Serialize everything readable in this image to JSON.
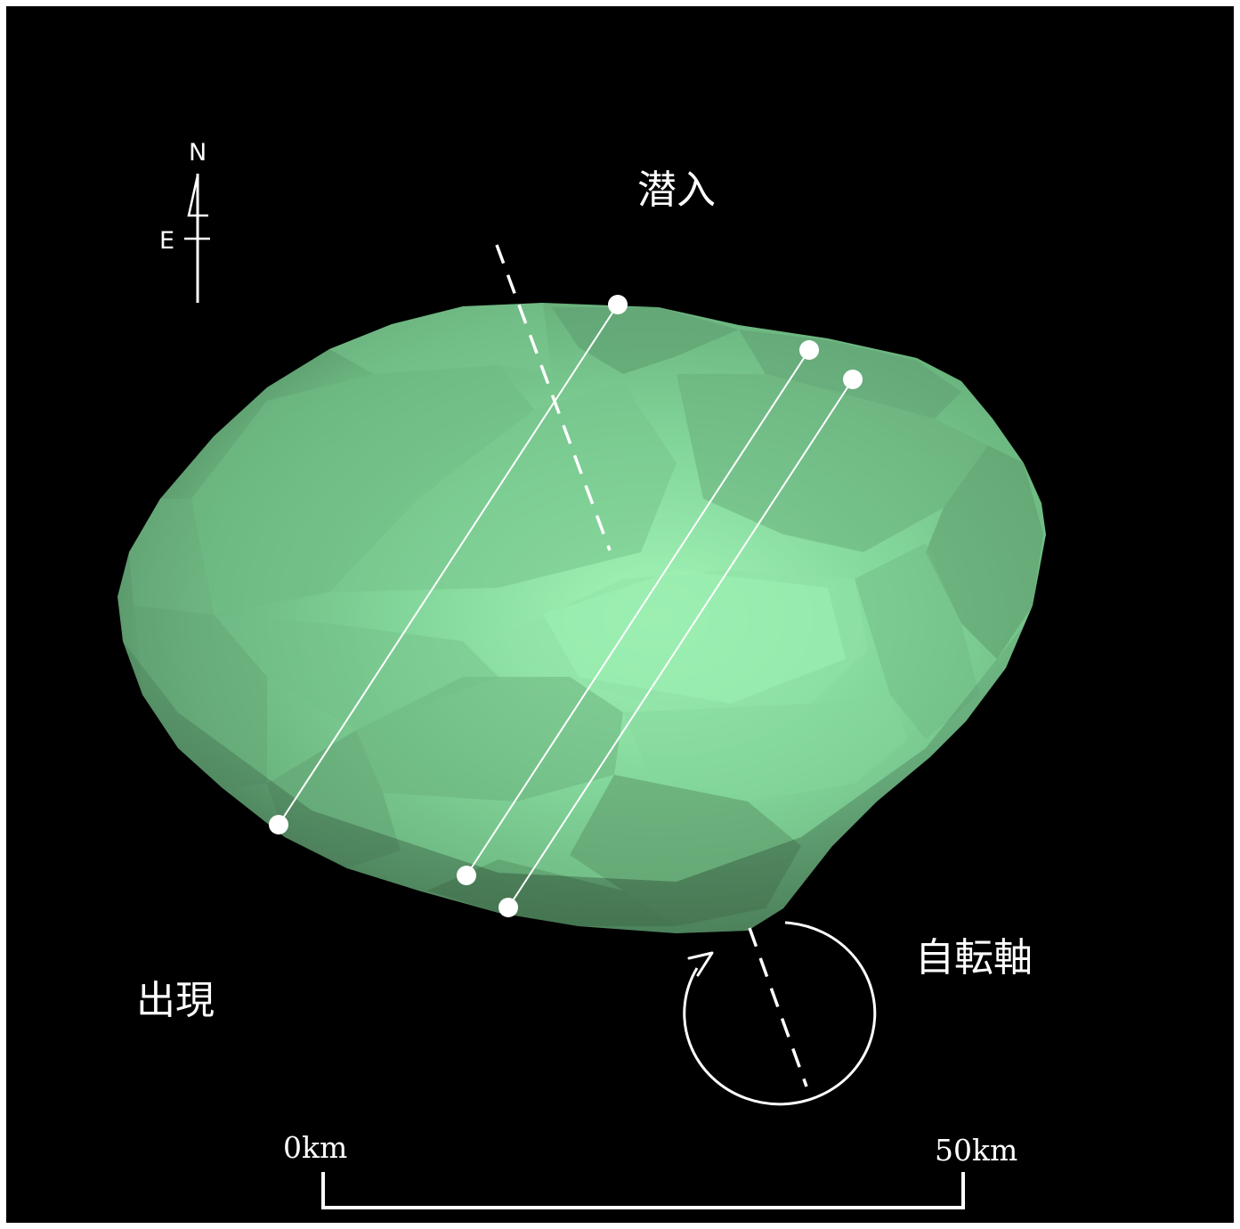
{
  "labels": {
    "ingress": "潜入",
    "egress": "出現",
    "rotation_axis": "自転軸"
  },
  "compass": {
    "north": "N",
    "east": "E"
  },
  "scale_bar": {
    "start_label": "0km",
    "end_label": "50km"
  },
  "colors": {
    "background": "#000000",
    "asteroid_light": "#9cf0b2",
    "asteroid_mid": "#7bcd92",
    "asteroid_dark": "#4e7f5a",
    "chord_lines": "#ffffff"
  },
  "chords": {
    "count": 3
  }
}
